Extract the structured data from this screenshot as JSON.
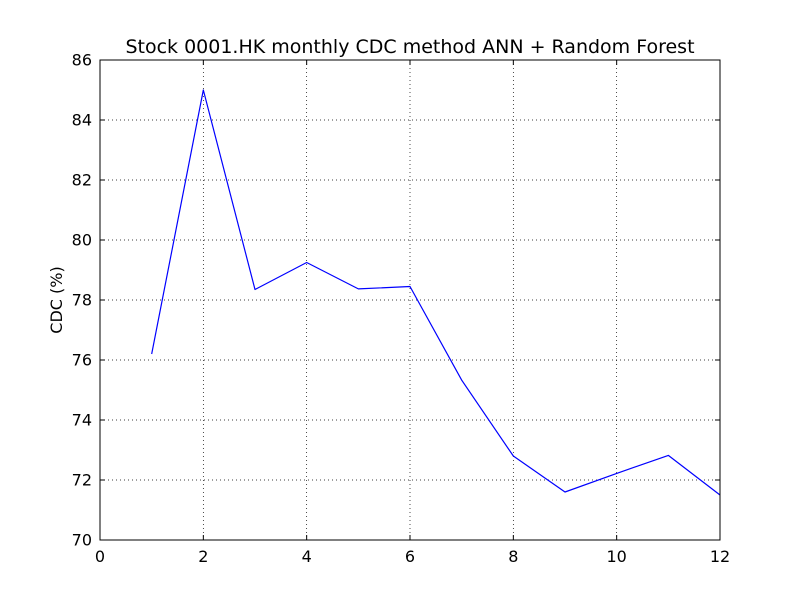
{
  "chart_data": {
    "type": "line",
    "title": "Stock 0001.HK monthly CDC method ANN + Random Forest",
    "xlabel": "",
    "ylabel": "CDC (%)",
    "xlim": [
      0,
      12
    ],
    "ylim": [
      70,
      86
    ],
    "xticks": [
      0,
      2,
      4,
      6,
      8,
      10,
      12
    ],
    "yticks": [
      70,
      72,
      74,
      76,
      78,
      80,
      82,
      84,
      86
    ],
    "grid": true,
    "series": [
      {
        "color": "#0000ff",
        "x": [
          1,
          2,
          3,
          4,
          5,
          6,
          7,
          8,
          9,
          10,
          11,
          12
        ],
        "y": [
          76.2,
          85.0,
          78.35,
          79.25,
          78.37,
          78.45,
          75.33,
          72.8,
          71.6,
          72.22,
          72.82,
          71.5
        ]
      }
    ]
  }
}
